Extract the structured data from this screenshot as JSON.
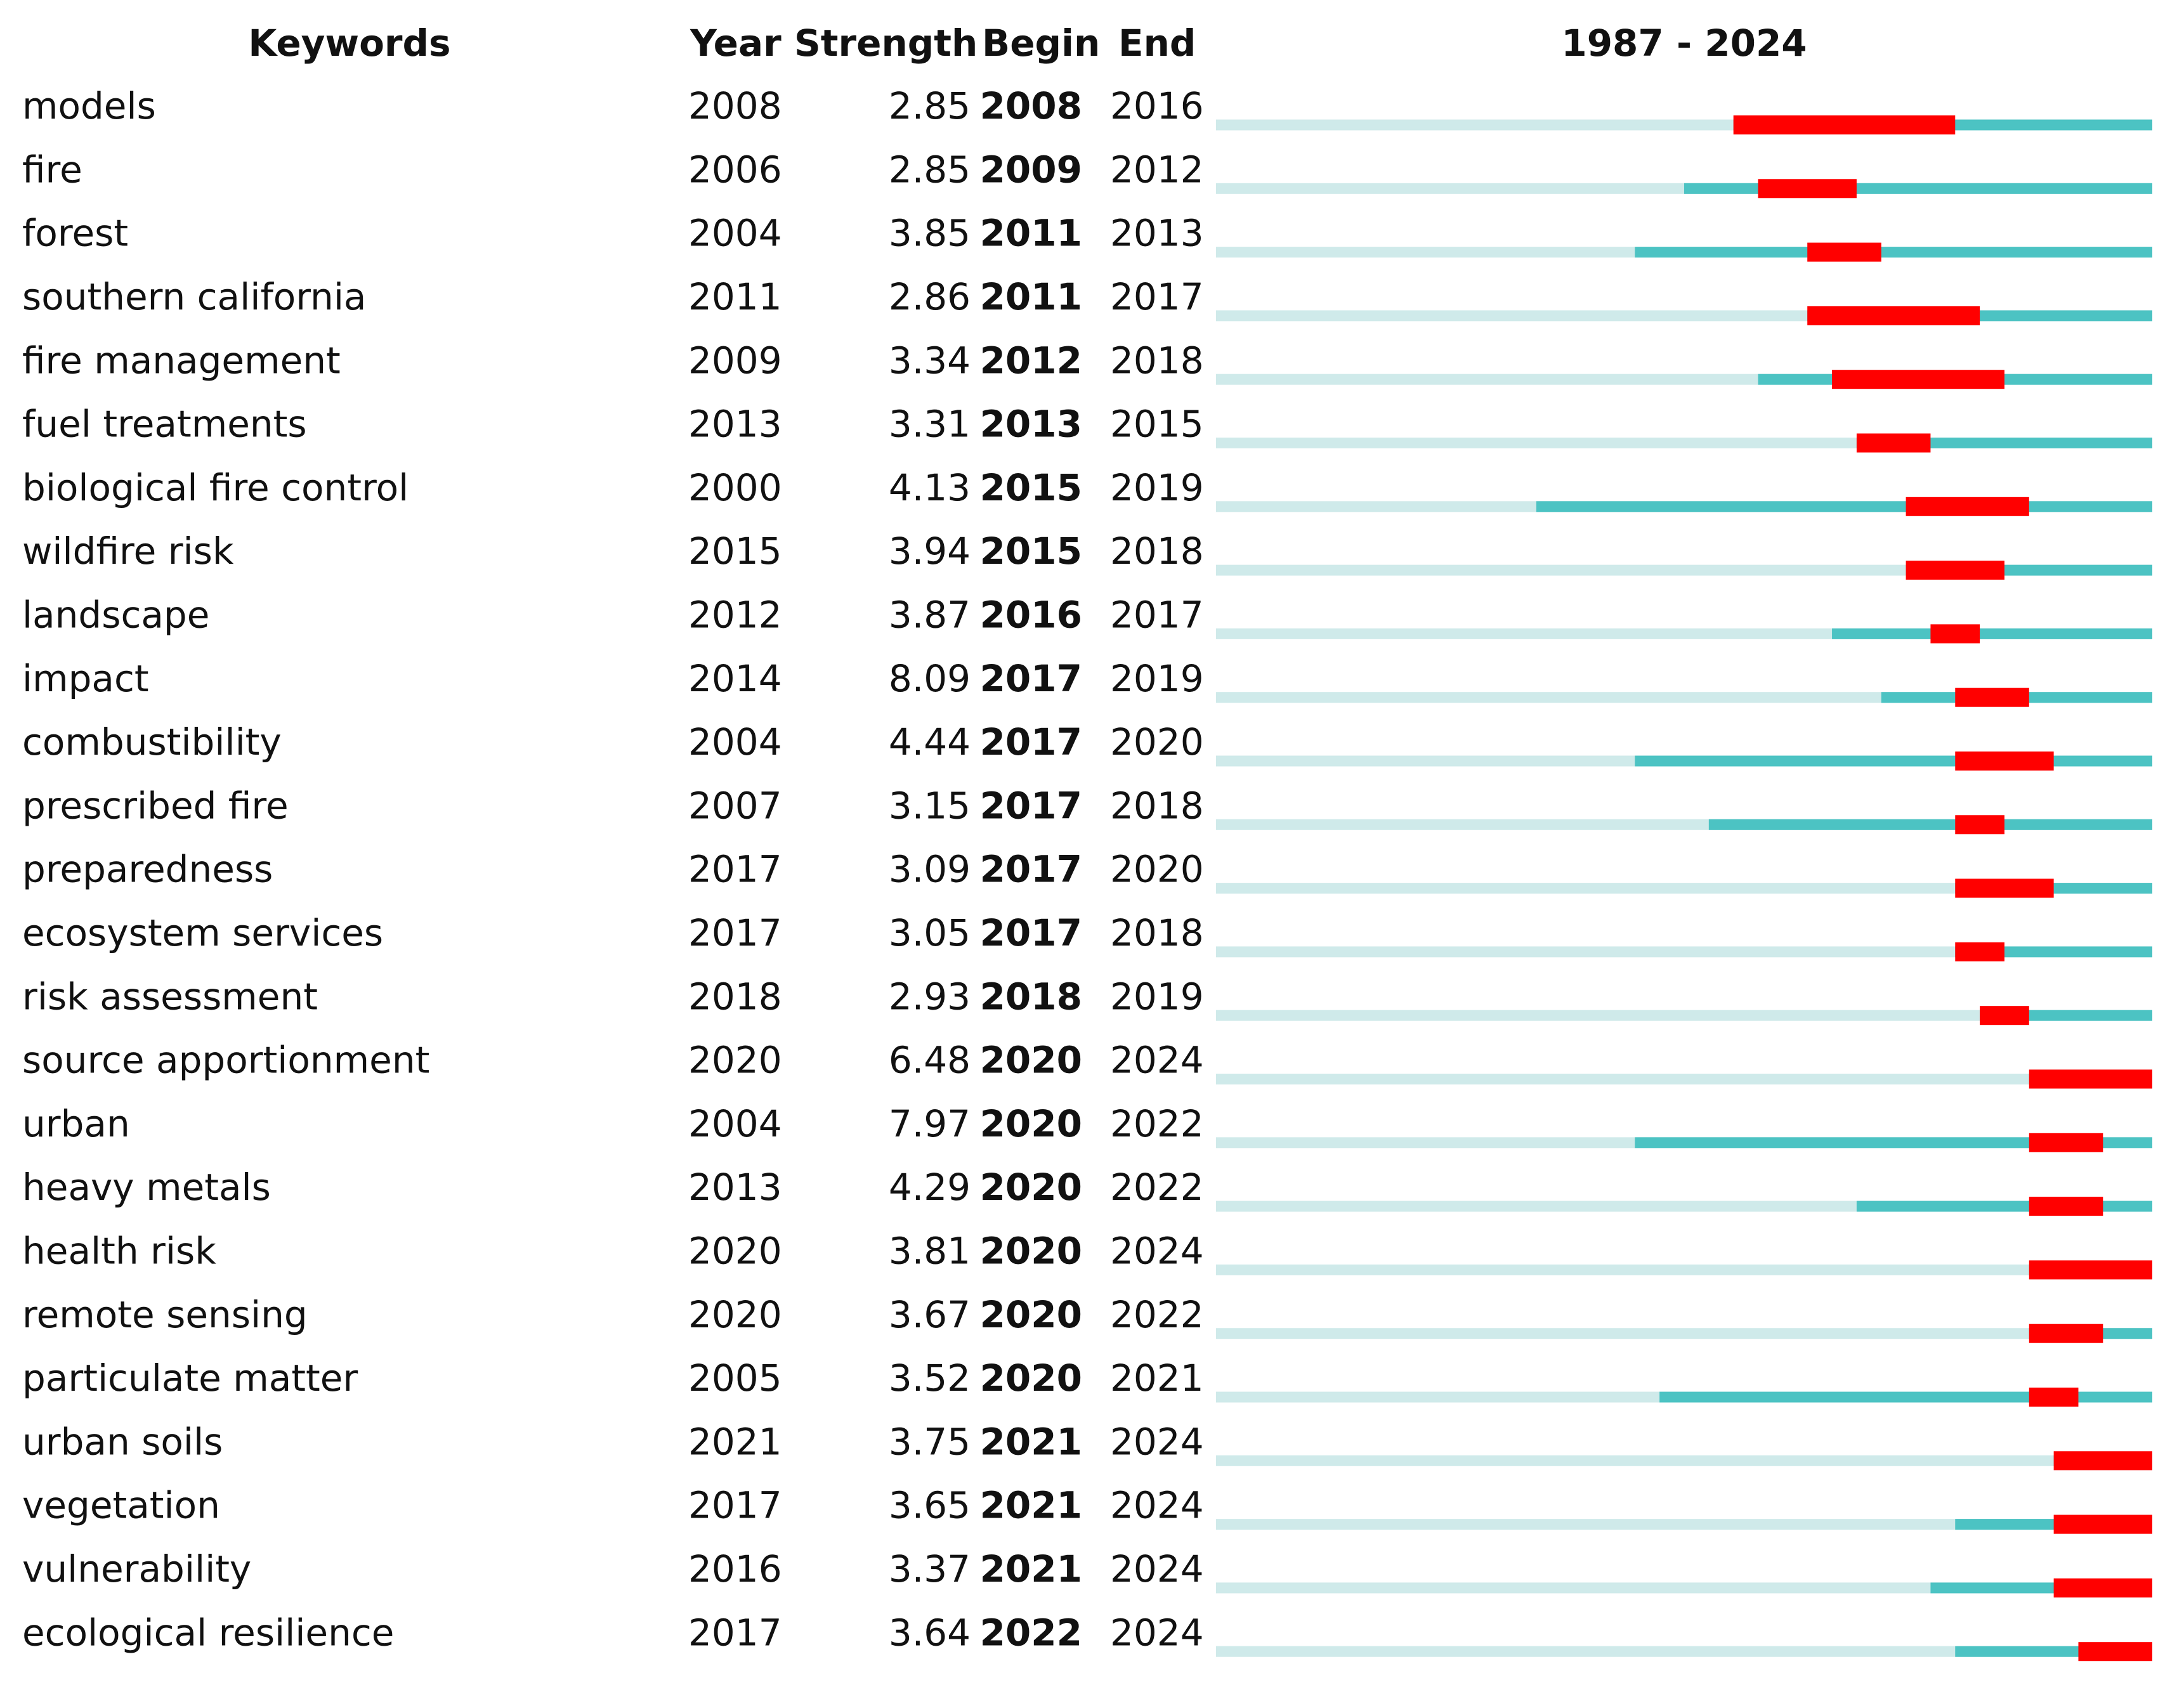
{
  "header": {
    "keywords": "Keywords",
    "year": "Year",
    "strength": "Strength",
    "begin": "Begin",
    "end": "End",
    "range": "1987 - 2024"
  },
  "rows": [
    {
      "keyword": "models",
      "year": 2008,
      "strength": 2.85,
      "begin": 2008,
      "end": 2016
    },
    {
      "keyword": "fire",
      "year": 2006,
      "strength": 2.85,
      "begin": 2009,
      "end": 2012
    },
    {
      "keyword": "forest",
      "year": 2004,
      "strength": 3.85,
      "begin": 2011,
      "end": 2013
    },
    {
      "keyword": "southern california",
      "year": 2011,
      "strength": 2.86,
      "begin": 2011,
      "end": 2017
    },
    {
      "keyword": "fire management",
      "year": 2009,
      "strength": 3.34,
      "begin": 2012,
      "end": 2018
    },
    {
      "keyword": "fuel treatments",
      "year": 2013,
      "strength": 3.31,
      "begin": 2013,
      "end": 2015
    },
    {
      "keyword": "biological fire control",
      "year": 2000,
      "strength": 4.13,
      "begin": 2015,
      "end": 2019
    },
    {
      "keyword": "wildfire risk",
      "year": 2015,
      "strength": 3.94,
      "begin": 2015,
      "end": 2018
    },
    {
      "keyword": "landscape",
      "year": 2012,
      "strength": 3.87,
      "begin": 2016,
      "end": 2017
    },
    {
      "keyword": "impact",
      "year": 2014,
      "strength": 8.09,
      "begin": 2017,
      "end": 2019
    },
    {
      "keyword": "combustibility",
      "year": 2004,
      "strength": 4.44,
      "begin": 2017,
      "end": 2020
    },
    {
      "keyword": "prescribed fire",
      "year": 2007,
      "strength": 3.15,
      "begin": 2017,
      "end": 2018
    },
    {
      "keyword": "preparedness",
      "year": 2017,
      "strength": 3.09,
      "begin": 2017,
      "end": 2020
    },
    {
      "keyword": "ecosystem services",
      "year": 2017,
      "strength": 3.05,
      "begin": 2017,
      "end": 2018
    },
    {
      "keyword": "risk assessment",
      "year": 2018,
      "strength": 2.93,
      "begin": 2018,
      "end": 2019
    },
    {
      "keyword": "source apportionment",
      "year": 2020,
      "strength": 6.48,
      "begin": 2020,
      "end": 2024
    },
    {
      "keyword": "urban",
      "year": 2004,
      "strength": 7.97,
      "begin": 2020,
      "end": 2022
    },
    {
      "keyword": "heavy metals",
      "year": 2013,
      "strength": 4.29,
      "begin": 2020,
      "end": 2022
    },
    {
      "keyword": "health risk",
      "year": 2020,
      "strength": 3.81,
      "begin": 2020,
      "end": 2024
    },
    {
      "keyword": "remote sensing",
      "year": 2020,
      "strength": 3.67,
      "begin": 2020,
      "end": 2022
    },
    {
      "keyword": "particulate matter",
      "year": 2005,
      "strength": 3.52,
      "begin": 2020,
      "end": 2021
    },
    {
      "keyword": "urban soils",
      "year": 2021,
      "strength": 3.75,
      "begin": 2021,
      "end": 2024
    },
    {
      "keyword": "vegetation",
      "year": 2017,
      "strength": 3.65,
      "begin": 2021,
      "end": 2024
    },
    {
      "keyword": "vulnerability",
      "year": 2016,
      "strength": 3.37,
      "begin": 2021,
      "end": 2024
    },
    {
      "keyword": "ecological resilience",
      "year": 2017,
      "strength": 3.64,
      "begin": 2022,
      "end": 2024
    }
  ]
}
